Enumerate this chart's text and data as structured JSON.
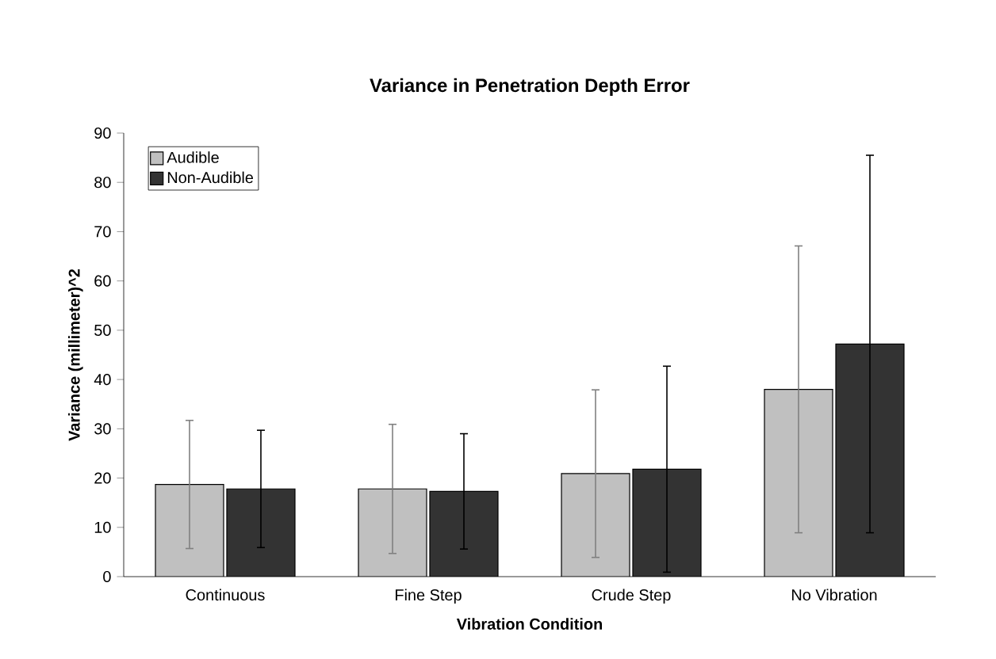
{
  "chart_data": {
    "type": "bar",
    "title": "Variance in Penetration Depth Error",
    "xlabel": "Vibration Condition",
    "ylabel": "Variance (millimeter)^2",
    "categories": [
      "Continuous",
      "Fine Step",
      "Crude Step",
      "No Vibration"
    ],
    "series": [
      {
        "name": "Audible",
        "color": "#c0c0c0",
        "values": [
          18.7,
          17.8,
          20.9,
          38.0
        ],
        "errors": [
          13,
          13.1,
          17,
          29.1
        ]
      },
      {
        "name": "Non-Audible",
        "color": "#333333",
        "values": [
          17.8,
          17.3,
          21.8,
          47.2
        ],
        "errors": [
          11.9,
          11.7,
          20.9,
          38.3
        ]
      }
    ],
    "ylim": [
      0,
      90
    ],
    "yticks": [
      0,
      10,
      20,
      30,
      40,
      50,
      60,
      70,
      80,
      90
    ],
    "grid": false,
    "legend": "top left"
  }
}
